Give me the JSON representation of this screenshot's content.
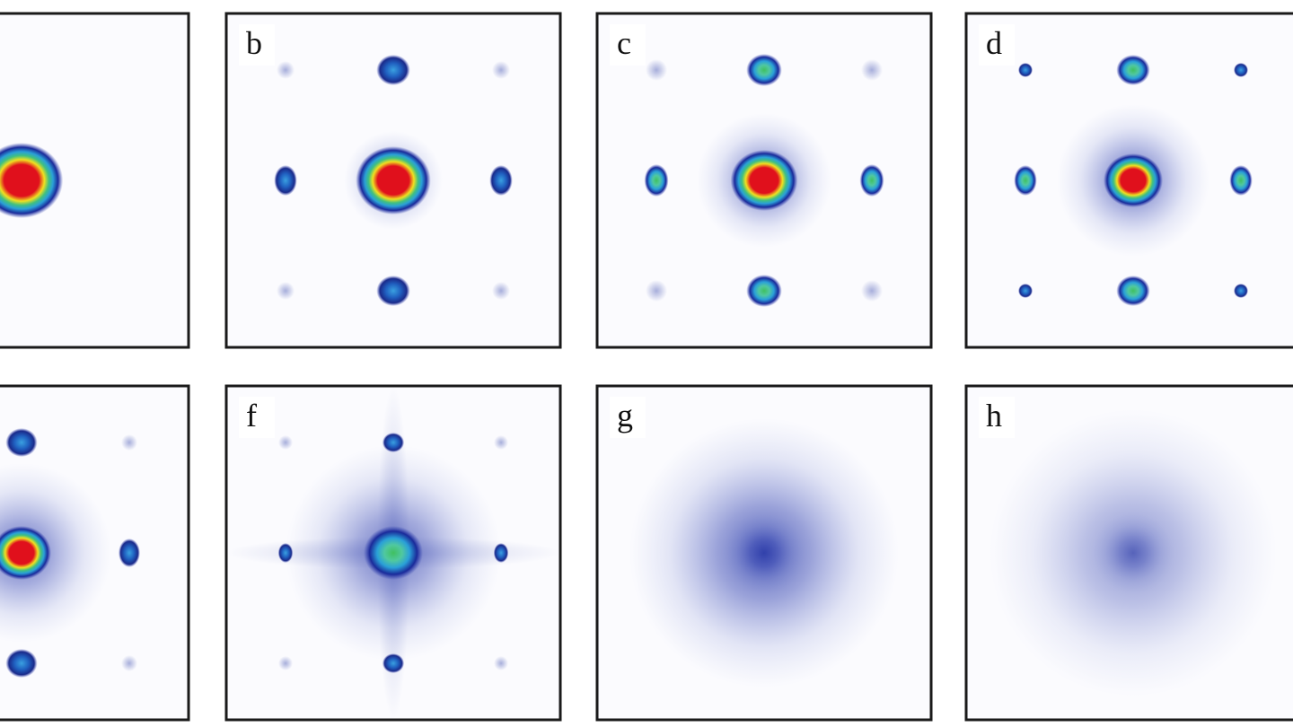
{
  "panels": [
    {
      "label": "b"
    },
    {
      "label": "c"
    },
    {
      "label": "d"
    },
    {
      "label": "f"
    },
    {
      "label": "g"
    },
    {
      "label": "h"
    }
  ]
}
